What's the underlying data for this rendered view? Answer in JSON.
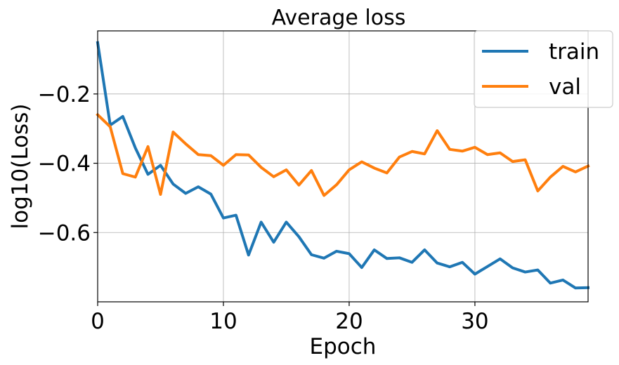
{
  "chart_data": {
    "type": "line",
    "title": "Average loss",
    "xlabel": "Epoch",
    "ylabel": "log10(Loss)",
    "xlim": [
      0,
      39
    ],
    "ylim": [
      -0.8,
      -0.018
    ],
    "x_ticks": [
      0,
      10,
      20,
      30
    ],
    "x_tick_labels": [
      "0",
      "10",
      "20",
      "30"
    ],
    "y_ticks": [
      -0.6,
      -0.4,
      -0.2
    ],
    "y_tick_labels": [
      "−0.6",
      "−0.4",
      "−0.2"
    ],
    "grid": true,
    "legend_position": "top-right",
    "x": [
      0,
      1,
      2,
      3,
      4,
      5,
      6,
      7,
      8,
      9,
      10,
      11,
      12,
      13,
      14,
      15,
      16,
      17,
      18,
      19,
      20,
      21,
      22,
      23,
      24,
      25,
      26,
      27,
      28,
      29,
      30,
      31,
      32,
      33,
      34,
      35,
      36,
      37,
      38,
      39
    ],
    "series": [
      {
        "name": "train",
        "color": "#1f77b4",
        "values": [
          -0.052,
          -0.29,
          -0.265,
          -0.356,
          -0.432,
          -0.406,
          -0.46,
          -0.487,
          -0.468,
          -0.489,
          -0.558,
          -0.55,
          -0.665,
          -0.57,
          -0.628,
          -0.57,
          -0.612,
          -0.664,
          -0.674,
          -0.654,
          -0.661,
          -0.701,
          -0.65,
          -0.675,
          -0.673,
          -0.686,
          -0.65,
          -0.688,
          -0.699,
          -0.686,
          -0.72,
          -0.698,
          -0.676,
          -0.702,
          -0.714,
          -0.708,
          -0.746,
          -0.737,
          -0.76,
          -0.759
        ]
      },
      {
        "name": "val",
        "color": "#ff7f0e",
        "values": [
          -0.26,
          -0.295,
          -0.43,
          -0.44,
          -0.352,
          -0.49,
          -0.31,
          -0.344,
          -0.375,
          -0.378,
          -0.406,
          -0.375,
          -0.376,
          -0.412,
          -0.439,
          -0.419,
          -0.463,
          -0.421,
          -0.493,
          -0.462,
          -0.419,
          -0.396,
          -0.414,
          -0.428,
          -0.382,
          -0.366,
          -0.373,
          -0.306,
          -0.36,
          -0.365,
          -0.354,
          -0.375,
          -0.37,
          -0.395,
          -0.39,
          -0.48,
          -0.44,
          -0.409,
          -0.425,
          -0.408
        ]
      }
    ]
  }
}
